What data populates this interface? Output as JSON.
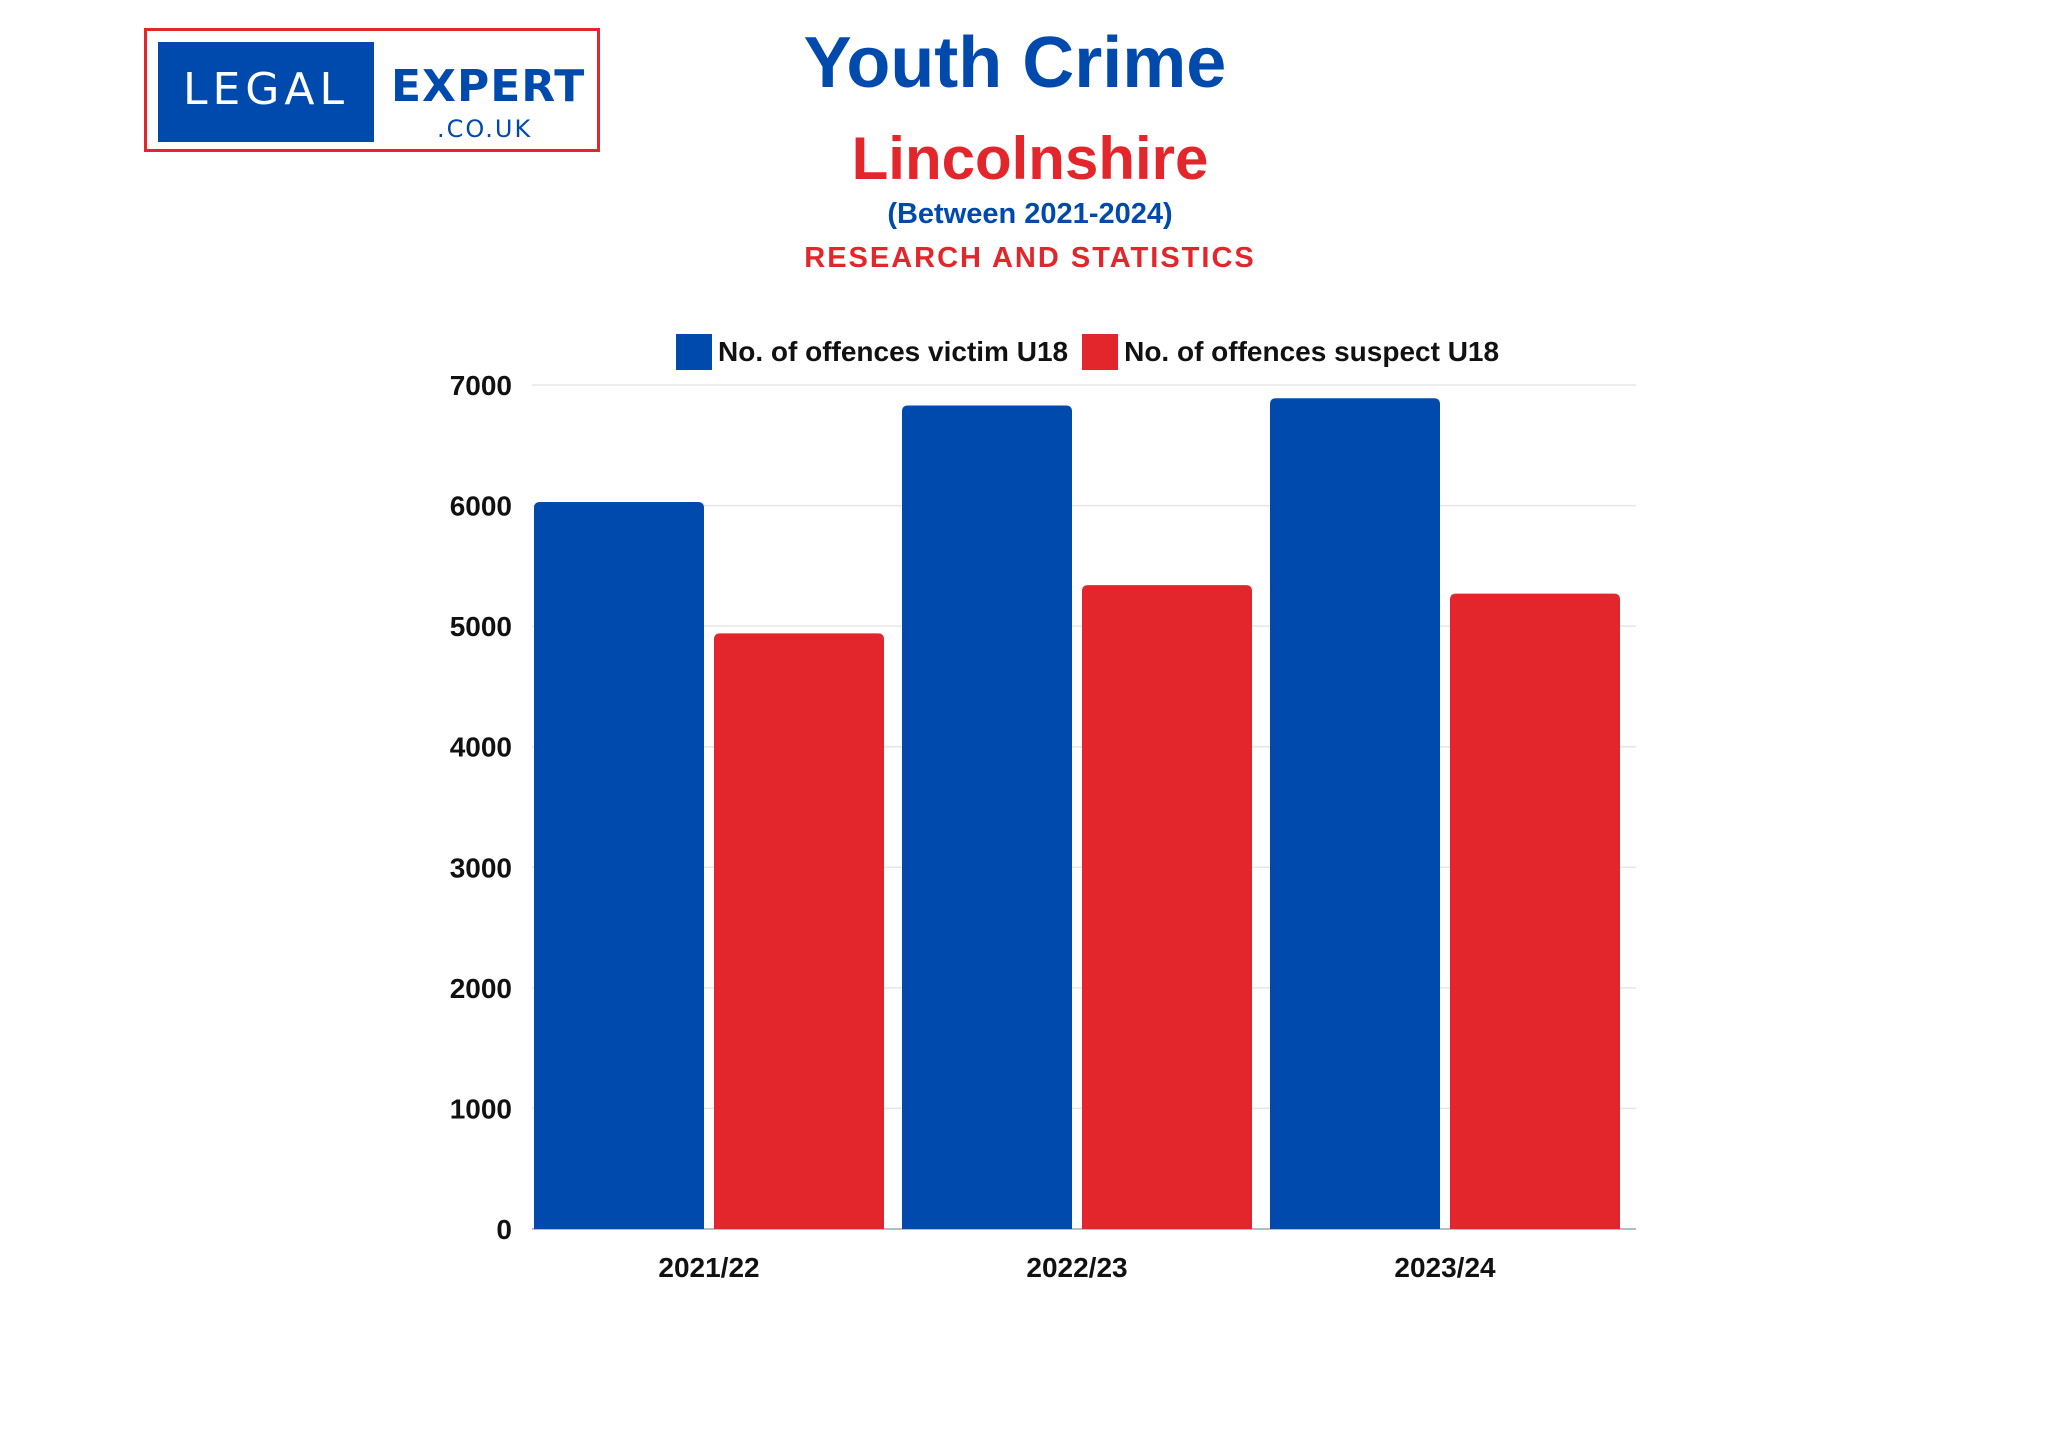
{
  "logo": {
    "left_text": "LEGAL",
    "right_text": "EXPERT",
    "sub_text": ".CO.UK"
  },
  "header": {
    "title": "Youth Crime",
    "subtitle": "Lincolnshire",
    "period": "(Between 2021-2024)",
    "tagline": "RESEARCH AND STATISTICS"
  },
  "colors": {
    "victim": "#004aad",
    "suspect": "#e3262b",
    "grid": "#e6e6e6",
    "axis": "#bbbbbb"
  },
  "chart_data": {
    "type": "bar",
    "title": "Youth Crime",
    "subtitle": "Lincolnshire",
    "categories": [
      "2021/22",
      "2022/23",
      "2023/24"
    ],
    "series": [
      {
        "name": "No. of offences victim U18",
        "values": [
          6030,
          6830,
          6890
        ],
        "color": "#004aad"
      },
      {
        "name": "No. of offences suspect U18",
        "values": [
          4940,
          5340,
          5270
        ],
        "color": "#e3262b"
      }
    ],
    "ylim": [
      0,
      7000
    ],
    "yticks": [
      0,
      1000,
      2000,
      3000,
      4000,
      5000,
      6000,
      7000
    ],
    "xlabel": "",
    "ylabel": "",
    "grid": true,
    "legend_position": "top"
  }
}
